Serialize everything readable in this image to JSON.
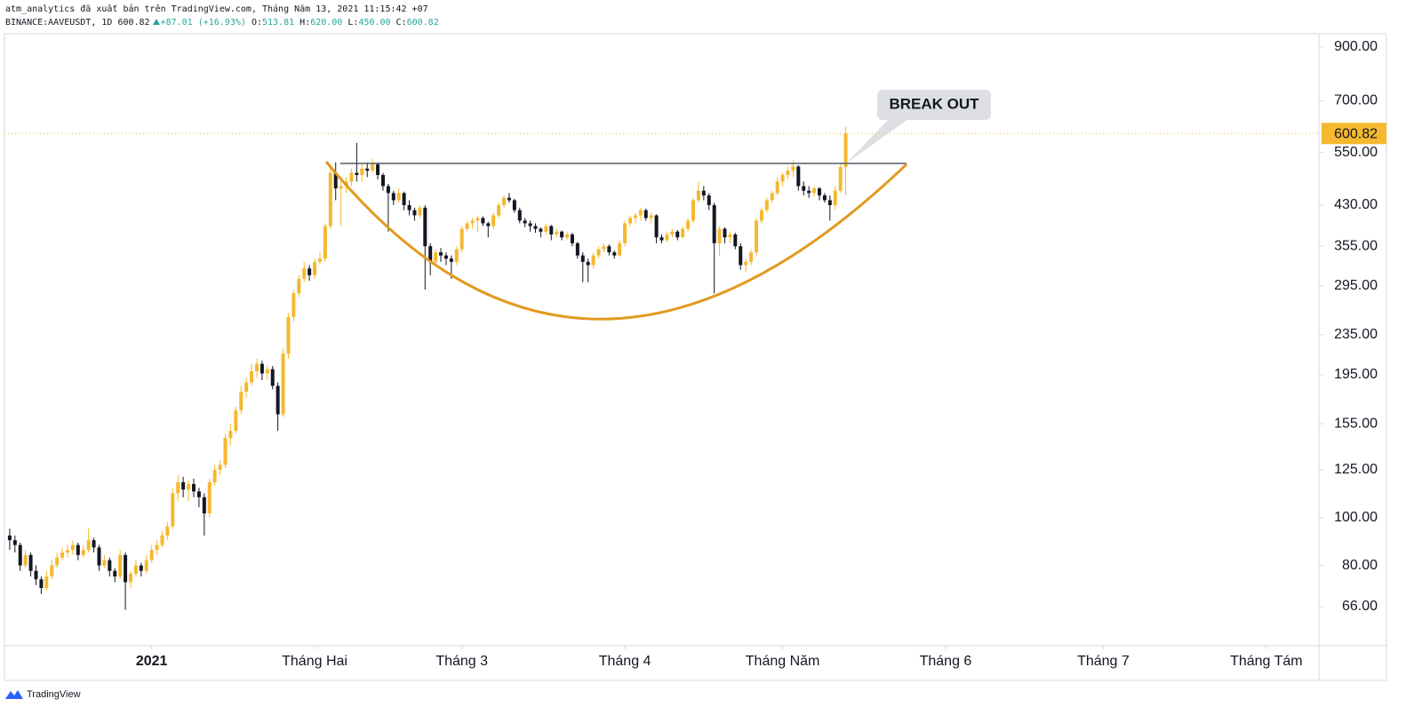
{
  "header": {
    "publisher": "atm_analytics đã xuất bản trên TradingView.com, Tháng Năm 13, 2021 11:15:42 +07",
    "symbol": "BINANCE:AAVEUSDT, 1D",
    "last": "600.82",
    "change": "+87.01 (+16.93%)",
    "ohlc": [
      {
        "label": "O:",
        "value": "513.81"
      },
      {
        "label": "H:",
        "value": "620.00"
      },
      {
        "label": "L:",
        "value": "450.00"
      },
      {
        "label": "C:",
        "value": "600.82"
      }
    ]
  },
  "footer": {
    "brand": "TradingView"
  },
  "chart_data": {
    "type": "candlestick",
    "log": true,
    "up_color": "#f5b82e",
    "down_color": "#131722",
    "ylim": [
      55,
      957
    ],
    "yticks": [
      {
        "value": 66,
        "label": "66.00"
      },
      {
        "value": 80,
        "label": "80.00"
      },
      {
        "value": 100,
        "label": "100.00"
      },
      {
        "value": 125,
        "label": "125.00"
      },
      {
        "value": 155,
        "label": "155.00"
      },
      {
        "value": 195,
        "label": "195.00"
      },
      {
        "value": 235,
        "label": "235.00"
      },
      {
        "value": 295,
        "label": "295.00"
      },
      {
        "value": 355,
        "label": "355.00"
      },
      {
        "value": 430,
        "label": "430.00"
      },
      {
        "value": 550,
        "label": "550.00"
      },
      {
        "value": 700,
        "label": "700.00"
      },
      {
        "value": 900,
        "label": "900.00"
      }
    ],
    "xlim": [
      "2020-12-04",
      "2021-08-11"
    ],
    "xticks": [
      {
        "value": "2021-01-01",
        "label": "2021"
      },
      {
        "value": "2021-02-01",
        "label": "Tháng Hai"
      },
      {
        "value": "2021-03-01",
        "label": "Tháng 3"
      },
      {
        "value": "2021-04-01",
        "label": "Tháng 4"
      },
      {
        "value": "2021-05-01",
        "label": "Tháng Năm"
      },
      {
        "value": "2021-06-01",
        "label": "Tháng 6"
      },
      {
        "value": "2021-07-01",
        "label": "Tháng 7"
      },
      {
        "value": "2021-08-01",
        "label": "Tháng Tám"
      }
    ],
    "last_price": {
      "value": 600.82,
      "label": "600.82"
    },
    "annotation": "BREAK OUT",
    "x": [
      "2020-12-05",
      "2020-12-06",
      "2020-12-07",
      "2020-12-08",
      "2020-12-09",
      "2020-12-10",
      "2020-12-11",
      "2020-12-12",
      "2020-12-13",
      "2020-12-14",
      "2020-12-15",
      "2020-12-16",
      "2020-12-17",
      "2020-12-18",
      "2020-12-19",
      "2020-12-20",
      "2020-12-21",
      "2020-12-22",
      "2020-12-23",
      "2020-12-24",
      "2020-12-25",
      "2020-12-26",
      "2020-12-27",
      "2020-12-28",
      "2020-12-29",
      "2020-12-30",
      "2020-12-31",
      "2021-01-01",
      "2021-01-02",
      "2021-01-03",
      "2021-01-04",
      "2021-01-05",
      "2021-01-06",
      "2021-01-07",
      "2021-01-08",
      "2021-01-09",
      "2021-01-10",
      "2021-01-11",
      "2021-01-12",
      "2021-01-13",
      "2021-01-14",
      "2021-01-15",
      "2021-01-16",
      "2021-01-17",
      "2021-01-18",
      "2021-01-19",
      "2021-01-20",
      "2021-01-21",
      "2021-01-22",
      "2021-01-23",
      "2021-01-24",
      "2021-01-25",
      "2021-01-26",
      "2021-01-27",
      "2021-01-28",
      "2021-01-29",
      "2021-01-30",
      "2021-01-31",
      "2021-02-01",
      "2021-02-02",
      "2021-02-03",
      "2021-02-04",
      "2021-02-05",
      "2021-02-06",
      "2021-02-07",
      "2021-02-08",
      "2021-02-09",
      "2021-02-10",
      "2021-02-11",
      "2021-02-12",
      "2021-02-13",
      "2021-02-14",
      "2021-02-15",
      "2021-02-16",
      "2021-02-17",
      "2021-02-18",
      "2021-02-19",
      "2021-02-20",
      "2021-02-21",
      "2021-02-22",
      "2021-02-23",
      "2021-02-24",
      "2021-02-25",
      "2021-02-26",
      "2021-02-27",
      "2021-02-28",
      "2021-03-01",
      "2021-03-02",
      "2021-03-03",
      "2021-03-04",
      "2021-03-05",
      "2021-03-06",
      "2021-03-07",
      "2021-03-08",
      "2021-03-09",
      "2021-03-10",
      "2021-03-11",
      "2021-03-12",
      "2021-03-13",
      "2021-03-14",
      "2021-03-15",
      "2021-03-16",
      "2021-03-17",
      "2021-03-18",
      "2021-03-19",
      "2021-03-20",
      "2021-03-21",
      "2021-03-22",
      "2021-03-23",
      "2021-03-24",
      "2021-03-25",
      "2021-03-26",
      "2021-03-27",
      "2021-03-28",
      "2021-03-29",
      "2021-03-30",
      "2021-03-31",
      "2021-04-01",
      "2021-04-02",
      "2021-04-03",
      "2021-04-04",
      "2021-04-05",
      "2021-04-06",
      "2021-04-07",
      "2021-04-08",
      "2021-04-09",
      "2021-04-10",
      "2021-04-11",
      "2021-04-12",
      "2021-04-13",
      "2021-04-14",
      "2021-04-15",
      "2021-04-16",
      "2021-04-17",
      "2021-04-18",
      "2021-04-19",
      "2021-04-20",
      "2021-04-21",
      "2021-04-22",
      "2021-04-23",
      "2021-04-24",
      "2021-04-25",
      "2021-04-26",
      "2021-04-27",
      "2021-04-28",
      "2021-04-29",
      "2021-04-30",
      "2021-05-01",
      "2021-05-02",
      "2021-05-03",
      "2021-05-04",
      "2021-05-05",
      "2021-05-06",
      "2021-05-07",
      "2021-05-08",
      "2021-05-09",
      "2021-05-10",
      "2021-05-11",
      "2021-05-12",
      "2021-05-13"
    ],
    "ohlc": [
      [
        92,
        95,
        86,
        90
      ],
      [
        90,
        92,
        85,
        88
      ],
      [
        88,
        89,
        78,
        80
      ],
      [
        80,
        86,
        79,
        84
      ],
      [
        84,
        85,
        76,
        78
      ],
      [
        78,
        80,
        73,
        75
      ],
      [
        75,
        76,
        70,
        72
      ],
      [
        72,
        78,
        71,
        76
      ],
      [
        76,
        82,
        75,
        80
      ],
      [
        80,
        85,
        79,
        83
      ],
      [
        83,
        87,
        82,
        85
      ],
      [
        85,
        88,
        83,
        86
      ],
      [
        86,
        90,
        84,
        88
      ],
      [
        88,
        89,
        82,
        84
      ],
      [
        84,
        88,
        83,
        86
      ],
      [
        86,
        95,
        85,
        90
      ],
      [
        90,
        91,
        85,
        87
      ],
      [
        87,
        88,
        78,
        80
      ],
      [
        80,
        84,
        79,
        82
      ],
      [
        82,
        83,
        76,
        78
      ],
      [
        78,
        79,
        74,
        76
      ],
      [
        76,
        86,
        75,
        84
      ],
      [
        84,
        85,
        65,
        74
      ],
      [
        74,
        78,
        72,
        77
      ],
      [
        77,
        82,
        76,
        80
      ],
      [
        80,
        81,
        76,
        78
      ],
      [
        78,
        84,
        77,
        82
      ],
      [
        82,
        88,
        81,
        86
      ],
      [
        86,
        90,
        84,
        88
      ],
      [
        88,
        94,
        87,
        92
      ],
      [
        92,
        98,
        90,
        96
      ],
      [
        96,
        115,
        95,
        112
      ],
      [
        112,
        122,
        108,
        118
      ],
      [
        118,
        121,
        110,
        114
      ],
      [
        114,
        119,
        108,
        117
      ],
      [
        117,
        120,
        110,
        113
      ],
      [
        113,
        115,
        105,
        110
      ],
      [
        110,
        112,
        92,
        102
      ],
      [
        102,
        120,
        100,
        118
      ],
      [
        118,
        128,
        116,
        125
      ],
      [
        125,
        131,
        122,
        128
      ],
      [
        128,
        148,
        126,
        145
      ],
      [
        145,
        155,
        140,
        150
      ],
      [
        150,
        168,
        148,
        165
      ],
      [
        165,
        185,
        162,
        180
      ],
      [
        180,
        192,
        175,
        188
      ],
      [
        188,
        205,
        185,
        198
      ],
      [
        198,
        210,
        192,
        205
      ],
      [
        205,
        208,
        190,
        196
      ],
      [
        196,
        204,
        190,
        200
      ],
      [
        200,
        203,
        182,
        185
      ],
      [
        185,
        188,
        150,
        162
      ],
      [
        162,
        220,
        160,
        215
      ],
      [
        215,
        260,
        210,
        255
      ],
      [
        255,
        290,
        250,
        285
      ],
      [
        285,
        310,
        280,
        305
      ],
      [
        305,
        330,
        300,
        320
      ],
      [
        320,
        325,
        302,
        310
      ],
      [
        310,
        335,
        305,
        330
      ],
      [
        330,
        345,
        325,
        335
      ],
      [
        335,
        395,
        330,
        390
      ],
      [
        390,
        520,
        385,
        500
      ],
      [
        500,
        525,
        440,
        465
      ],
      [
        465,
        480,
        390,
        470
      ],
      [
        470,
        490,
        455,
        480
      ],
      [
        480,
        510,
        470,
        500
      ],
      [
        500,
        575,
        480,
        495
      ],
      [
        495,
        520,
        480,
        510
      ],
      [
        510,
        525,
        490,
        505
      ],
      [
        505,
        535,
        500,
        520
      ],
      [
        520,
        525,
        485,
        495
      ],
      [
        495,
        500,
        460,
        470
      ],
      [
        470,
        475,
        380,
        455
      ],
      [
        455,
        460,
        430,
        440
      ],
      [
        440,
        465,
        435,
        455
      ],
      [
        455,
        458,
        420,
        430
      ],
      [
        430,
        440,
        410,
        420
      ],
      [
        420,
        425,
        400,
        410
      ],
      [
        410,
        430,
        405,
        425
      ],
      [
        425,
        430,
        290,
        355
      ],
      [
        355,
        360,
        310,
        330
      ],
      [
        330,
        350,
        325,
        345
      ],
      [
        345,
        352,
        330,
        340
      ],
      [
        340,
        345,
        325,
        335
      ],
      [
        335,
        340,
        305,
        330
      ],
      [
        330,
        355,
        325,
        350
      ],
      [
        350,
        390,
        345,
        385
      ],
      [
        385,
        400,
        380,
        395
      ],
      [
        395,
        405,
        385,
        400
      ],
      [
        400,
        410,
        380,
        405
      ],
      [
        405,
        408,
        390,
        395
      ],
      [
        395,
        398,
        370,
        390
      ],
      [
        390,
        415,
        385,
        410
      ],
      [
        410,
        435,
        405,
        430
      ],
      [
        430,
        450,
        425,
        445
      ],
      [
        445,
        455,
        435,
        440
      ],
      [
        440,
        443,
        415,
        420
      ],
      [
        420,
        425,
        395,
        400
      ],
      [
        400,
        405,
        388,
        395
      ],
      [
        395,
        400,
        380,
        390
      ],
      [
        390,
        395,
        378,
        385
      ],
      [
        385,
        388,
        370,
        380
      ],
      [
        380,
        395,
        375,
        390
      ],
      [
        390,
        392,
        365,
        375
      ],
      [
        375,
        385,
        370,
        380
      ],
      [
        380,
        382,
        365,
        370
      ],
      [
        370,
        380,
        365,
        375
      ],
      [
        375,
        378,
        355,
        360
      ],
      [
        360,
        362,
        335,
        340
      ],
      [
        340,
        345,
        300,
        330
      ],
      [
        330,
        335,
        300,
        325
      ],
      [
        325,
        345,
        320,
        340
      ],
      [
        340,
        355,
        335,
        350
      ],
      [
        350,
        360,
        345,
        355
      ],
      [
        355,
        358,
        340,
        345
      ],
      [
        345,
        348,
        335,
        340
      ],
      [
        340,
        365,
        338,
        360
      ],
      [
        360,
        400,
        355,
        395
      ],
      [
        395,
        410,
        390,
        405
      ],
      [
        405,
        415,
        395,
        410
      ],
      [
        410,
        425,
        400,
        420
      ],
      [
        420,
        423,
        400,
        405
      ],
      [
        405,
        415,
        395,
        410
      ],
      [
        410,
        412,
        360,
        370
      ],
      [
        370,
        375,
        360,
        365
      ],
      [
        365,
        380,
        362,
        375
      ],
      [
        375,
        385,
        370,
        380
      ],
      [
        380,
        383,
        365,
        370
      ],
      [
        370,
        390,
        368,
        385
      ],
      [
        385,
        405,
        380,
        400
      ],
      [
        400,
        445,
        395,
        440
      ],
      [
        440,
        480,
        435,
        460
      ],
      [
        460,
        470,
        440,
        450
      ],
      [
        450,
        455,
        420,
        430
      ],
      [
        430,
        435,
        285,
        360
      ],
      [
        360,
        390,
        340,
        385
      ],
      [
        385,
        388,
        360,
        370
      ],
      [
        370,
        380,
        360,
        375
      ],
      [
        375,
        378,
        350,
        355
      ],
      [
        355,
        360,
        318,
        325
      ],
      [
        325,
        335,
        315,
        330
      ],
      [
        330,
        350,
        325,
        345
      ],
      [
        345,
        405,
        340,
        400
      ],
      [
        400,
        425,
        395,
        420
      ],
      [
        420,
        445,
        415,
        440
      ],
      [
        440,
        460,
        435,
        455
      ],
      [
        455,
        490,
        450,
        480
      ],
      [
        480,
        500,
        470,
        495
      ],
      [
        495,
        515,
        485,
        505
      ],
      [
        505,
        530,
        490,
        515
      ],
      [
        515,
        518,
        460,
        470
      ],
      [
        470,
        480,
        450,
        460
      ],
      [
        460,
        470,
        445,
        455
      ],
      [
        455,
        470,
        448,
        465
      ],
      [
        465,
        468,
        440,
        450
      ],
      [
        450,
        455,
        435,
        440
      ],
      [
        440,
        450,
        400,
        430
      ],
      [
        430,
        470,
        420,
        460
      ],
      [
        460,
        520,
        455,
        513.81
      ],
      [
        513.81,
        620,
        450,
        600.82
      ]
    ]
  }
}
